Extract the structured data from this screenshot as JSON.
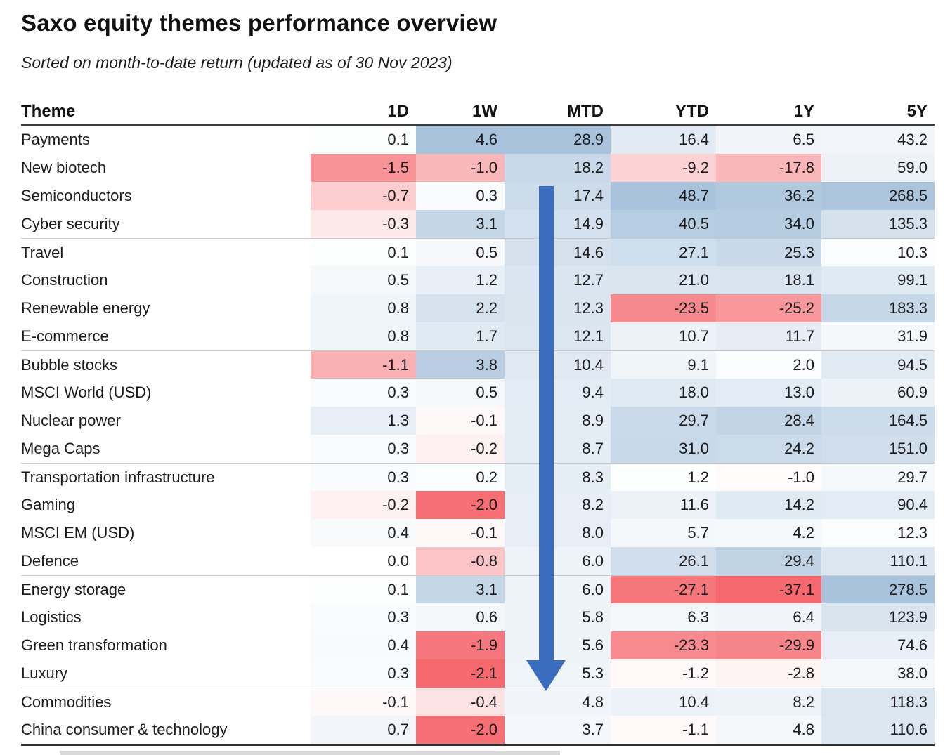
{
  "title": "Saxo equity themes performance overview",
  "subtitle": "Sorted on month-to-date return (updated as of 30 Nov 2023)",
  "arrow_annotation": {
    "meaning": "sorted descending on MTD column",
    "direction": "down",
    "color": "#3a6dbd"
  },
  "heatmap_colors": {
    "positive_full": "#a9c3dc",
    "negative_full": "#f4686e",
    "neutral": "#ffffff"
  },
  "chart_data": {
    "type": "table",
    "heatmap": true,
    "title": "Saxo equity themes performance overview",
    "subtitle": "Sorted on month-to-date return (updated as of 30 Nov 2023)",
    "columns": [
      "Theme",
      "1D",
      "1W",
      "MTD",
      "YTD",
      "1Y",
      "5Y"
    ],
    "rows": [
      {
        "theme": "Payments",
        "values": [
          0.1,
          4.6,
          28.9,
          16.4,
          6.5,
          43.2
        ]
      },
      {
        "theme": "New biotech",
        "values": [
          -1.5,
          -1.0,
          18.2,
          -9.2,
          -17.8,
          59.0
        ]
      },
      {
        "theme": "Semiconductors",
        "values": [
          -0.7,
          0.3,
          17.4,
          48.7,
          36.2,
          268.5
        ]
      },
      {
        "theme": "Cyber security",
        "values": [
          -0.3,
          3.1,
          14.9,
          40.5,
          34.0,
          135.3
        ]
      },
      {
        "theme": "Travel",
        "values": [
          0.1,
          0.5,
          14.6,
          27.1,
          25.3,
          10.3
        ]
      },
      {
        "theme": "Construction",
        "values": [
          0.5,
          1.2,
          12.7,
          21.0,
          18.1,
          99.1
        ]
      },
      {
        "theme": "Renewable energy",
        "values": [
          0.8,
          2.2,
          12.3,
          -23.5,
          -25.2,
          183.3
        ]
      },
      {
        "theme": "E-commerce",
        "values": [
          0.8,
          1.7,
          12.1,
          10.7,
          11.7,
          31.9
        ]
      },
      {
        "theme": "Bubble stocks",
        "values": [
          -1.1,
          3.8,
          10.4,
          9.1,
          2.0,
          94.5
        ]
      },
      {
        "theme": "MSCI World (USD)",
        "values": [
          0.3,
          0.5,
          9.4,
          18.0,
          13.0,
          60.9
        ]
      },
      {
        "theme": "Nuclear power",
        "values": [
          1.3,
          -0.1,
          8.9,
          29.7,
          28.4,
          164.5
        ]
      },
      {
        "theme": "Mega Caps",
        "values": [
          0.3,
          -0.2,
          8.7,
          31.0,
          24.2,
          151.0
        ]
      },
      {
        "theme": "Transportation infrastructure",
        "values": [
          0.3,
          0.2,
          8.3,
          1.2,
          -1.0,
          29.7
        ]
      },
      {
        "theme": "Gaming",
        "values": [
          -0.2,
          -2.0,
          8.2,
          11.6,
          14.2,
          90.4
        ]
      },
      {
        "theme": "MSCI EM (USD)",
        "values": [
          0.4,
          -0.1,
          8.0,
          5.7,
          4.2,
          12.3
        ]
      },
      {
        "theme": "Defence",
        "values": [
          0.0,
          -0.8,
          6.0,
          26.1,
          29.4,
          110.1
        ]
      },
      {
        "theme": "Energy storage",
        "values": [
          0.1,
          3.1,
          6.0,
          -27.1,
          -37.1,
          278.5
        ]
      },
      {
        "theme": "Logistics",
        "values": [
          0.3,
          0.6,
          5.8,
          6.3,
          6.4,
          123.9
        ]
      },
      {
        "theme": "Green transformation",
        "values": [
          0.4,
          -1.9,
          5.6,
          -23.3,
          -29.9,
          74.6
        ]
      },
      {
        "theme": "Luxury",
        "values": [
          0.3,
          -2.1,
          5.3,
          -1.2,
          -2.8,
          38.0
        ]
      },
      {
        "theme": "Commodities",
        "values": [
          -0.1,
          -0.4,
          4.8,
          10.4,
          8.2,
          118.3
        ]
      },
      {
        "theme": "China consumer & technology",
        "values": [
          0.7,
          -2.0,
          3.7,
          -1.1,
          4.8,
          110.6
        ]
      }
    ]
  }
}
